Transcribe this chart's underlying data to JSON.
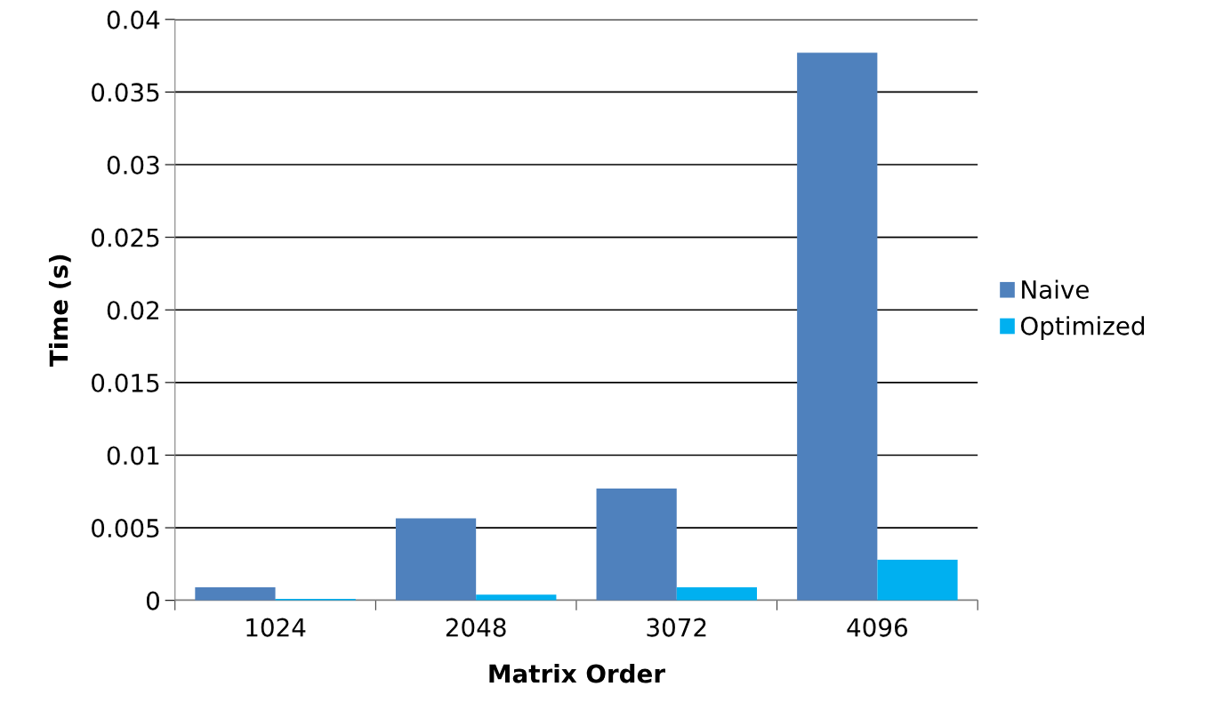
{
  "chart_data": {
    "type": "bar",
    "xlabel": "Matrix Order",
    "ylabel": "Time (s)",
    "categories": [
      "1024",
      "2048",
      "3072",
      "4096"
    ],
    "series": [
      {
        "name": "Naive",
        "color": "#4f81bd",
        "values": [
          0.0009,
          0.00565,
          0.0077,
          0.0377
        ]
      },
      {
        "name": "Optimized",
        "color": "#00b0f0",
        "values": [
          0.0001,
          0.0004,
          0.0009,
          0.0028
        ]
      }
    ],
    "ylim": [
      0,
      0.04
    ],
    "yticks": [
      0,
      0.005,
      0.01,
      0.015,
      0.02,
      0.025,
      0.03,
      0.035,
      0.04
    ],
    "grid": "y",
    "legend": "right"
  }
}
